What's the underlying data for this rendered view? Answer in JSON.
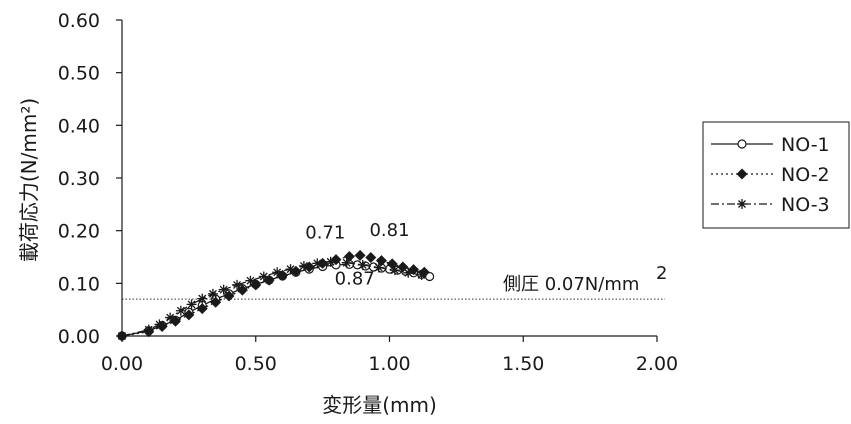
{
  "chart_data": {
    "type": "line",
    "xlabel": "変形量(mm)",
    "ylabel": "載荷応力(N/mm²)",
    "xlim": [
      0,
      2.0
    ],
    "ylim": [
      0,
      0.6
    ],
    "x_ticks": [
      "0.00",
      "0.50",
      "1.00",
      "1.50",
      "2.00"
    ],
    "y_ticks": [
      "0.00",
      "0.10",
      "0.20",
      "0.30",
      "0.40",
      "0.50",
      "0.60"
    ],
    "grid": false,
    "legend_position": "right",
    "series": [
      {
        "name": "NO-1",
        "marker": "circle",
        "line_style": "solid",
        "color": "#1a1a1a",
        "x": [
          0.0,
          0.1,
          0.15,
          0.2,
          0.25,
          0.3,
          0.35,
          0.4,
          0.45,
          0.5,
          0.55,
          0.6,
          0.65,
          0.7,
          0.75,
          0.8,
          0.85,
          0.88,
          0.91,
          0.94,
          0.97,
          1.0,
          1.03,
          1.06,
          1.09,
          1.12,
          1.15
        ],
        "y": [
          0.0,
          0.01,
          0.02,
          0.03,
          0.045,
          0.058,
          0.07,
          0.08,
          0.09,
          0.098,
          0.106,
          0.114,
          0.121,
          0.127,
          0.132,
          0.135,
          0.136,
          0.135,
          0.133,
          0.131,
          0.129,
          0.127,
          0.125,
          0.123,
          0.12,
          0.117,
          0.113
        ]
      },
      {
        "name": "NO-2",
        "marker": "diamond",
        "line_style": "dotted",
        "color": "#1a1a1a",
        "x": [
          0.0,
          0.1,
          0.15,
          0.2,
          0.25,
          0.3,
          0.35,
          0.4,
          0.45,
          0.5,
          0.55,
          0.6,
          0.65,
          0.7,
          0.75,
          0.8,
          0.85,
          0.89,
          0.93,
          0.97,
          1.01,
          1.05,
          1.09,
          1.13
        ],
        "y": [
          0.0,
          0.008,
          0.018,
          0.028,
          0.04,
          0.052,
          0.064,
          0.076,
          0.087,
          0.097,
          0.106,
          0.115,
          0.123,
          0.131,
          0.138,
          0.145,
          0.151,
          0.153,
          0.149,
          0.143,
          0.137,
          0.131,
          0.126,
          0.121
        ]
      },
      {
        "name": "NO-3",
        "marker": "asterisk",
        "line_style": "dash-dot",
        "color": "#1a1a1a",
        "x": [
          0.0,
          0.1,
          0.14,
          0.18,
          0.22,
          0.26,
          0.3,
          0.34,
          0.38,
          0.43,
          0.48,
          0.53,
          0.58,
          0.63,
          0.68,
          0.73,
          0.78,
          0.84,
          0.9,
          0.96,
          1.02,
          1.07,
          1.12
        ],
        "y": [
          0.0,
          0.012,
          0.022,
          0.035,
          0.048,
          0.06,
          0.071,
          0.08,
          0.088,
          0.097,
          0.105,
          0.113,
          0.121,
          0.127,
          0.133,
          0.138,
          0.141,
          0.139,
          0.135,
          0.13,
          0.125,
          0.12,
          0.116
        ]
      }
    ],
    "reference_line": {
      "y": 0.07,
      "label": "側圧 0.07N/mm",
      "label_superscript": "2",
      "style": "dotted"
    },
    "annotations": [
      {
        "text": "0.71",
        "x": 0.76,
        "y": 0.185
      },
      {
        "text": "0.81",
        "x": 1.0,
        "y": 0.19
      },
      {
        "text": "0.87",
        "x": 0.87,
        "y": 0.098
      }
    ]
  }
}
